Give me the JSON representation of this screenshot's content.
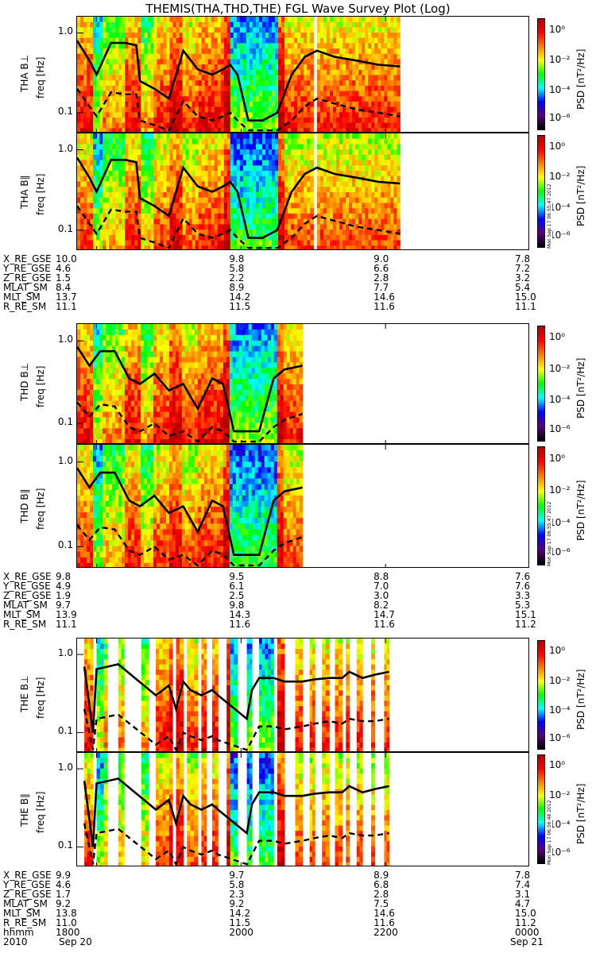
{
  "title": "THEMIS(THA,THD,THE) FGL Wave Survey Plot (Log)",
  "colorbar": {
    "unit_label": "PSD [nT²/Hz]",
    "tick_labels": [
      "10⁰",
      "10⁻²",
      "10⁻⁴",
      "10⁻⁶"
    ],
    "stops": [
      "#000000",
      "#5a0080",
      "#0000ff",
      "#00ffff",
      "#00ff00",
      "#ffff00",
      "#ff8000",
      "#ff0000",
      "#b00000"
    ]
  },
  "stamps": {
    "tha": "Mon Sep 17 06:55:47 2012",
    "thd": "Mon Sep 17 06:55:47 2012",
    "the": "Mon Sep 17 06:56:48 2012"
  },
  "orbit": {
    "tha": [
      {
        "label": "X_RE_GSE",
        "values": [
          "10.0",
          "9.8",
          "9.0",
          "7.8"
        ]
      },
      {
        "label": "Y_RE_GSE",
        "values": [
          "4.6",
          "5.8",
          "6.6",
          "7.2"
        ]
      },
      {
        "label": "Z_RE_GSE",
        "values": [
          "1.5",
          "2.2",
          "2.8",
          "3.2"
        ]
      },
      {
        "label": "MLAT_SM",
        "values": [
          "8.4",
          "8.9",
          "7.7",
          "5.4"
        ]
      },
      {
        "label": "MLT_SM",
        "values": [
          "13.7",
          "14.2",
          "14.6",
          "15.0"
        ]
      },
      {
        "label": "R_RE_SM",
        "values": [
          "11.1",
          "11.5",
          "11.6",
          "11.1"
        ]
      }
    ],
    "thd": [
      {
        "label": "X_RE_GSE",
        "values": [
          "9.8",
          "9.5",
          "8.8",
          "7.6"
        ]
      },
      {
        "label": "Y_RE_GSE",
        "values": [
          "4.9",
          "6.1",
          "7.0",
          "7.6"
        ]
      },
      {
        "label": "Z_RE_GSE",
        "values": [
          "1.9",
          "2.5",
          "3.0",
          "3.3"
        ]
      },
      {
        "label": "MLAT_SM",
        "values": [
          "9.7",
          "9.8",
          "8.2",
          "5.3"
        ]
      },
      {
        "label": "MLT_SM",
        "values": [
          "13.9",
          "14.3",
          "14.7",
          "15.1"
        ]
      },
      {
        "label": "R_RE_SM",
        "values": [
          "11.1",
          "11.6",
          "11.6",
          "11.2"
        ]
      }
    ],
    "the": [
      {
        "label": "X_RE_GSE",
        "values": [
          "9.9",
          "9.7",
          "8.9",
          "7.8"
        ]
      },
      {
        "label": "Y_RE_GSE",
        "values": [
          "4.6",
          "5.8",
          "6.8",
          "7.4"
        ]
      },
      {
        "label": "Z_RE_GSE",
        "values": [
          "1.7",
          "2.3",
          "2.8",
          "3.1"
        ]
      },
      {
        "label": "MLAT_SM",
        "values": [
          "9.2",
          "9.2",
          "7.5",
          "4.7"
        ]
      },
      {
        "label": "MLT_SM",
        "values": [
          "13.8",
          "14.2",
          "14.6",
          "15.0"
        ]
      },
      {
        "label": "R_RE_SM",
        "values": [
          "11.0",
          "11.5",
          "11.6",
          "11.2"
        ]
      },
      {
        "label": "hhmm",
        "values": [
          "1800",
          "2000",
          "2200",
          "0000"
        ]
      }
    ],
    "date_row": {
      "label": "2010",
      "left": "Sep 20",
      "right": "Sep 21"
    }
  },
  "chart_data": {
    "type": "heatmap",
    "title": "THEMIS(THA,THD,THE) FGL Wave Survey Plot (Log)",
    "x_unit": "UT hours from 2010-09-20 00:00",
    "xlim": [
      17.73,
      24.0
    ],
    "x_tick_labels": [
      "1800",
      "2000",
      "2200",
      "0000"
    ],
    "x_ticks_hours": [
      18,
      20,
      22,
      24
    ],
    "date_labels": [
      "Sep 20",
      "Sep 21"
    ],
    "y_scale": "log",
    "ylim_hz": [
      0.055,
      1.6
    ],
    "y_tick_labels": [
      "1.0",
      "0.1"
    ],
    "y_ticks_hz": [
      1.0,
      0.1
    ],
    "ylabel": "freq [Hz]",
    "color_scale": "log PSD",
    "color_range_log10": [
      -7,
      1.5
    ],
    "panels": [
      {
        "name": "THA B⊥",
        "probe": "tha",
        "coverage_hours": [
          [
            17.73,
            21.0
          ],
          [
            21.05,
            22.2
          ]
        ],
        "upper_line": {
          "x": [
            17.73,
            17.9,
            18.0,
            18.2,
            18.4,
            18.55,
            18.6,
            18.8,
            19.0,
            19.2,
            19.4,
            19.6,
            19.75,
            19.85,
            19.95,
            20.1,
            20.3,
            20.5,
            20.7,
            20.88,
            21.05,
            21.3,
            21.6,
            21.9,
            22.2
          ],
          "y": [
            0.8,
            0.45,
            0.3,
            0.75,
            0.75,
            0.7,
            0.25,
            0.2,
            0.15,
            0.6,
            0.35,
            0.3,
            0.35,
            0.4,
            0.3,
            0.08,
            0.08,
            0.1,
            0.3,
            0.5,
            0.6,
            0.5,
            0.45,
            0.4,
            0.38
          ]
        },
        "lower_line": {
          "x": [
            17.73,
            17.9,
            18.0,
            18.2,
            18.4,
            18.55,
            18.6,
            18.8,
            19.0,
            19.2,
            19.4,
            19.6,
            19.75,
            19.85,
            19.95,
            20.1,
            20.3,
            20.5,
            20.7,
            20.88,
            21.05,
            21.3,
            21.6,
            21.9,
            22.2
          ],
          "y": [
            0.2,
            0.12,
            0.09,
            0.18,
            0.17,
            0.17,
            0.08,
            0.07,
            0.06,
            0.14,
            0.09,
            0.08,
            0.09,
            0.1,
            0.08,
            0.06,
            0.06,
            0.06,
            0.08,
            0.12,
            0.15,
            0.13,
            0.11,
            0.1,
            0.09
          ]
        }
      },
      {
        "name": "THA B∥",
        "probe": "tha",
        "coverage_hours": [
          [
            17.73,
            21.0
          ],
          [
            21.05,
            22.2
          ]
        ],
        "upper_line": {
          "x": [
            17.73,
            17.9,
            18.0,
            18.2,
            18.4,
            18.55,
            18.6,
            18.8,
            19.0,
            19.2,
            19.4,
            19.6,
            19.75,
            19.85,
            19.95,
            20.1,
            20.3,
            20.5,
            20.7,
            20.88,
            21.05,
            21.3,
            21.6,
            21.9,
            22.2
          ],
          "y": [
            0.8,
            0.45,
            0.3,
            0.75,
            0.75,
            0.7,
            0.25,
            0.2,
            0.15,
            0.6,
            0.35,
            0.3,
            0.35,
            0.4,
            0.3,
            0.08,
            0.08,
            0.1,
            0.3,
            0.5,
            0.6,
            0.5,
            0.45,
            0.4,
            0.38
          ]
        },
        "lower_line": {
          "x": [
            17.73,
            17.9,
            18.0,
            18.2,
            18.4,
            18.55,
            18.6,
            18.8,
            19.0,
            19.2,
            19.4,
            19.6,
            19.75,
            19.85,
            19.95,
            20.1,
            20.3,
            20.5,
            20.7,
            20.88,
            21.05,
            21.3,
            21.6,
            21.9,
            22.2
          ],
          "y": [
            0.2,
            0.12,
            0.09,
            0.18,
            0.17,
            0.17,
            0.08,
            0.07,
            0.06,
            0.14,
            0.09,
            0.08,
            0.09,
            0.1,
            0.08,
            0.06,
            0.06,
            0.06,
            0.08,
            0.12,
            0.15,
            0.13,
            0.11,
            0.1,
            0.09
          ]
        }
      },
      {
        "name": "THD B⊥",
        "probe": "thd",
        "coverage_hours": [
          [
            17.73,
            20.85
          ]
        ],
        "upper_line": {
          "x": [
            17.73,
            17.9,
            18.05,
            18.25,
            18.45,
            18.6,
            18.8,
            19.0,
            19.2,
            19.4,
            19.6,
            19.75,
            19.9,
            20.05,
            20.25,
            20.45,
            20.6,
            20.85
          ],
          "y": [
            0.85,
            0.5,
            0.75,
            0.75,
            0.35,
            0.3,
            0.4,
            0.25,
            0.3,
            0.15,
            0.35,
            0.3,
            0.08,
            0.08,
            0.08,
            0.35,
            0.45,
            0.5
          ]
        },
        "lower_line": {
          "x": [
            17.73,
            17.9,
            18.05,
            18.25,
            18.45,
            18.6,
            18.8,
            19.0,
            19.2,
            19.4,
            19.6,
            19.75,
            19.9,
            20.05,
            20.25,
            20.45,
            20.6,
            20.85
          ],
          "y": [
            0.18,
            0.12,
            0.17,
            0.16,
            0.09,
            0.08,
            0.1,
            0.07,
            0.08,
            0.06,
            0.09,
            0.08,
            0.06,
            0.06,
            0.06,
            0.09,
            0.11,
            0.13
          ]
        }
      },
      {
        "name": "THD B∥",
        "probe": "thd",
        "coverage_hours": [
          [
            17.73,
            20.85
          ]
        ],
        "upper_line": {
          "x": [
            17.73,
            17.9,
            18.05,
            18.25,
            18.45,
            18.6,
            18.8,
            19.0,
            19.2,
            19.4,
            19.6,
            19.75,
            19.9,
            20.05,
            20.25,
            20.45,
            20.6,
            20.85
          ],
          "y": [
            0.85,
            0.5,
            0.75,
            0.75,
            0.35,
            0.3,
            0.4,
            0.25,
            0.3,
            0.15,
            0.35,
            0.3,
            0.08,
            0.08,
            0.08,
            0.35,
            0.45,
            0.5
          ]
        },
        "lower_line": {
          "x": [
            17.73,
            17.9,
            18.05,
            18.25,
            18.45,
            18.6,
            18.8,
            19.0,
            19.2,
            19.4,
            19.6,
            19.75,
            19.9,
            20.05,
            20.25,
            20.45,
            20.6,
            20.85
          ],
          "y": [
            0.18,
            0.12,
            0.17,
            0.16,
            0.09,
            0.08,
            0.1,
            0.07,
            0.08,
            0.06,
            0.09,
            0.08,
            0.06,
            0.06,
            0.06,
            0.09,
            0.11,
            0.13
          ]
        }
      },
      {
        "name": "THE B⊥",
        "probe": "the",
        "coverage_hours": [
          [
            17.83,
            17.95
          ],
          [
            18.0,
            18.15
          ],
          [
            18.3,
            18.38
          ],
          [
            18.62,
            18.72
          ],
          [
            18.82,
            19.05
          ],
          [
            19.1,
            19.2
          ],
          [
            19.25,
            19.4
          ],
          [
            19.45,
            19.52
          ],
          [
            19.6,
            19.68
          ],
          [
            19.8,
            19.95
          ],
          [
            20.08,
            20.15
          ],
          [
            20.25,
            20.45
          ],
          [
            20.5,
            20.6
          ],
          [
            20.75,
            20.85
          ],
          [
            20.95,
            21.02
          ],
          [
            21.12,
            21.22
          ],
          [
            21.3,
            21.4
          ],
          [
            21.45,
            21.5
          ],
          [
            21.6,
            21.68
          ],
          [
            21.8,
            21.85
          ],
          [
            21.98,
            22.05
          ]
        ],
        "upper_line": {
          "x": [
            17.83,
            17.95,
            18.0,
            18.3,
            18.82,
            19.0,
            19.1,
            19.2,
            19.3,
            19.45,
            19.6,
            19.68,
            20.08,
            20.15,
            20.25,
            20.45,
            20.6,
            20.85,
            21.02,
            21.22,
            21.4,
            21.5,
            21.68,
            21.85,
            22.05
          ],
          "y": [
            0.7,
            0.1,
            0.65,
            0.75,
            0.3,
            0.4,
            0.2,
            0.45,
            0.35,
            0.3,
            0.35,
            0.3,
            0.15,
            0.35,
            0.5,
            0.5,
            0.45,
            0.45,
            0.48,
            0.5,
            0.5,
            0.6,
            0.5,
            0.55,
            0.6
          ]
        },
        "lower_line": {
          "x": [
            17.83,
            17.95,
            18.0,
            18.3,
            18.82,
            19.0,
            19.1,
            19.2,
            19.3,
            19.45,
            19.6,
            19.68,
            20.08,
            20.15,
            20.25,
            20.45,
            20.6,
            20.85,
            21.02,
            21.22,
            21.4,
            21.5,
            21.68,
            21.85,
            22.05
          ],
          "y": [
            0.2,
            0.06,
            0.15,
            0.17,
            0.07,
            0.09,
            0.06,
            0.1,
            0.09,
            0.08,
            0.09,
            0.08,
            0.06,
            0.08,
            0.12,
            0.12,
            0.11,
            0.12,
            0.13,
            0.14,
            0.13,
            0.15,
            0.14,
            0.14,
            0.15
          ]
        }
      },
      {
        "name": "THE B∥",
        "probe": "the",
        "coverage_hours": [
          [
            17.83,
            17.95
          ],
          [
            18.0,
            18.15
          ],
          [
            18.3,
            18.38
          ],
          [
            18.62,
            18.72
          ],
          [
            18.82,
            19.05
          ],
          [
            19.1,
            19.2
          ],
          [
            19.25,
            19.4
          ],
          [
            19.45,
            19.52
          ],
          [
            19.6,
            19.68
          ],
          [
            19.8,
            19.95
          ],
          [
            20.08,
            20.15
          ],
          [
            20.25,
            20.45
          ],
          [
            20.5,
            20.6
          ],
          [
            20.75,
            20.85
          ],
          [
            20.95,
            21.02
          ],
          [
            21.12,
            21.22
          ],
          [
            21.3,
            21.4
          ],
          [
            21.45,
            21.5
          ],
          [
            21.6,
            21.68
          ],
          [
            21.8,
            21.85
          ],
          [
            21.98,
            22.05
          ]
        ],
        "upper_line": {
          "x": [
            17.83,
            17.95,
            18.0,
            18.3,
            18.82,
            19.0,
            19.1,
            19.2,
            19.3,
            19.45,
            19.6,
            19.68,
            20.08,
            20.15,
            20.25,
            20.45,
            20.6,
            20.85,
            21.02,
            21.22,
            21.4,
            21.5,
            21.68,
            21.85,
            22.05
          ],
          "y": [
            0.7,
            0.1,
            0.65,
            0.75,
            0.3,
            0.4,
            0.2,
            0.45,
            0.35,
            0.3,
            0.35,
            0.3,
            0.15,
            0.35,
            0.5,
            0.5,
            0.45,
            0.45,
            0.48,
            0.5,
            0.5,
            0.6,
            0.5,
            0.55,
            0.6
          ]
        },
        "lower_line": {
          "x": [
            17.83,
            17.95,
            18.0,
            18.3,
            18.82,
            19.0,
            19.1,
            19.2,
            19.3,
            19.45,
            19.6,
            19.68,
            20.08,
            20.15,
            20.25,
            20.45,
            20.6,
            20.85,
            21.02,
            21.22,
            21.4,
            21.5,
            21.68,
            21.85,
            22.05
          ],
          "y": [
            0.2,
            0.06,
            0.15,
            0.17,
            0.07,
            0.09,
            0.06,
            0.1,
            0.09,
            0.08,
            0.09,
            0.08,
            0.06,
            0.08,
            0.12,
            0.12,
            0.11,
            0.12,
            0.13,
            0.14,
            0.13,
            0.15,
            0.14,
            0.14,
            0.15
          ]
        }
      }
    ],
    "spectral_bands": [
      {
        "x0": 17.73,
        "x1": 17.95,
        "log_psd": -0.3
      },
      {
        "x0": 17.95,
        "x1": 18.1,
        "log_psd": -2.6
      },
      {
        "x0": 18.1,
        "x1": 18.4,
        "log_psd": -1.5
      },
      {
        "x0": 18.4,
        "x1": 18.6,
        "log_psd": -0.2
      },
      {
        "x0": 18.6,
        "x1": 18.8,
        "log_psd": -1.8
      },
      {
        "x0": 18.8,
        "x1": 19.0,
        "log_psd": -0.5
      },
      {
        "x0": 19.0,
        "x1": 19.2,
        "log_psd": 0.3
      },
      {
        "x0": 19.2,
        "x1": 19.4,
        "log_psd": -0.8
      },
      {
        "x0": 19.4,
        "x1": 19.75,
        "log_psd": -0.2
      },
      {
        "x0": 19.75,
        "x1": 19.85,
        "log_psd": 0.8
      },
      {
        "x0": 19.85,
        "x1": 20.5,
        "log_psd": -3.2
      },
      {
        "x0": 20.5,
        "x1": 20.6,
        "log_psd": 0.6
      },
      {
        "x0": 20.6,
        "x1": 22.2,
        "log_psd": -0.6
      }
    ]
  }
}
